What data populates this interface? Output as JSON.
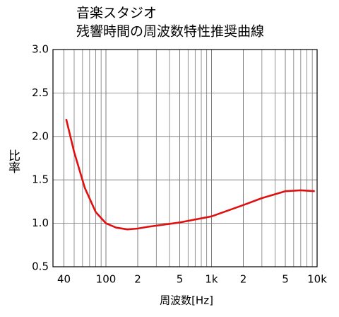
{
  "chart_data": {
    "type": "line",
    "title": "音楽スタジオ",
    "subtitle": "残響時間の周波数特性推奨曲線",
    "x_label": "周波数[Hz]",
    "y_label": "比率",
    "log_x": true,
    "grid": true,
    "xlim": [
      31.5,
      10000
    ],
    "xticks": [
      40,
      100,
      {
        "value": 200,
        "label": "2"
      },
      {
        "value": 500,
        "label": "5"
      },
      {
        "value": 1000,
        "label": "1k"
      },
      {
        "value": 2000,
        "label": "2"
      },
      {
        "value": 5000,
        "label": "5"
      },
      {
        "value": 10000,
        "label": "10k"
      }
    ],
    "ylim": [
      0.5,
      3.0
    ],
    "yticks": [
      0.5,
      {
        "value": 1,
        "label": "1.0"
      },
      1.5,
      {
        "value": 2,
        "label": "2.0"
      },
      2.5,
      {
        "value": 3,
        "label": "3.0"
      }
    ],
    "series": [
      {
        "color": "#e01010",
        "x": [
          42,
          50,
          63,
          80,
          100,
          125,
          160,
          200,
          250,
          500,
          1000,
          2000,
          3000,
          5000,
          7000,
          9500
        ],
        "values": [
          2.2,
          1.82,
          1.41,
          1.13,
          1.0,
          0.95,
          0.93,
          0.94,
          0.96,
          1.01,
          1.08,
          1.21,
          1.29,
          1.37,
          1.38,
          1.37
        ]
      }
    ]
  }
}
